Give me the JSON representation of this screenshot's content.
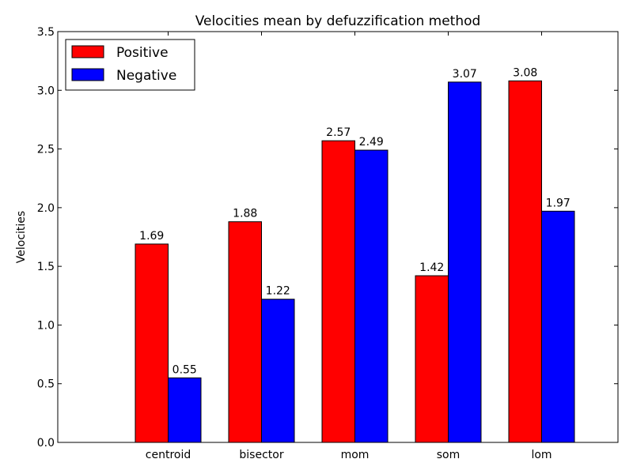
{
  "chart_data": {
    "type": "bar",
    "title": "Velocities mean by defuzzification method",
    "xlabel": "",
    "ylabel": "Velocities",
    "categories": [
      "centroid",
      "bisector",
      "mom",
      "som",
      "lom"
    ],
    "series": [
      {
        "name": "Positive",
        "color": "#ff0000",
        "values": [
          1.69,
          1.88,
          2.57,
          1.42,
          3.08
        ],
        "labels": [
          "1.69",
          "1.88",
          "2.57",
          "1.42",
          "3.08"
        ]
      },
      {
        "name": "Negative",
        "color": "#0000ff",
        "values": [
          0.55,
          1.22,
          2.49,
          3.07,
          1.97
        ],
        "labels": [
          "0.55",
          "1.22",
          "2.49",
          "3.07",
          "1.97"
        ]
      }
    ],
    "ylim": [
      0,
      3.5
    ],
    "yticks": [
      "0.0",
      "0.5",
      "1.0",
      "1.5",
      "2.0",
      "2.5",
      "3.0",
      "3.5"
    ],
    "legend_position": "top-left",
    "grid": false
  }
}
